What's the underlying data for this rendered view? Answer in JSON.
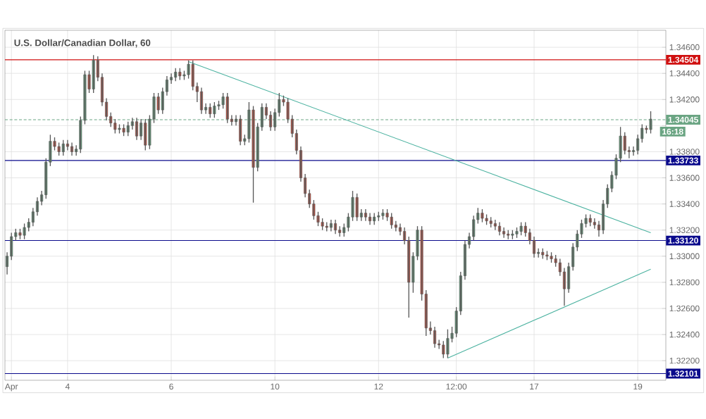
{
  "chart_data": {
    "type": "candlestick",
    "title": "U.S. Dollar/Canadian Dollar, 60",
    "categories": [
      null,
      "Apr",
      null,
      null,
      null,
      null,
      null,
      null,
      null,
      null,
      null,
      null,
      null,
      null,
      "4",
      null,
      null,
      null,
      null,
      null,
      null,
      null,
      null,
      null,
      null,
      null,
      null,
      null,
      null,
      null,
      null,
      null,
      null,
      null,
      null,
      null,
      null,
      null,
      "6",
      null,
      null,
      null,
      null,
      null,
      null,
      null,
      null,
      null,
      null,
      null,
      null,
      null,
      null,
      null,
      null,
      null,
      null,
      null,
      null,
      null,
      null,
      null,
      "10",
      null,
      null,
      null,
      null,
      null,
      null,
      null,
      null,
      null,
      null,
      null,
      null,
      null,
      null,
      null,
      null,
      null,
      null,
      null,
      null,
      null,
      null,
      null,
      "12",
      null,
      null,
      null,
      null,
      null,
      null,
      null,
      null,
      null,
      null,
      null,
      null,
      null,
      null,
      null,
      null,
      null,
      "12:00",
      null,
      null,
      null,
      null,
      null,
      null,
      null,
      null,
      null,
      null,
      null,
      null,
      null,
      null,
      null,
      null,
      null,
      "17",
      null,
      null,
      null,
      null,
      null,
      null,
      null,
      null,
      null,
      null,
      null,
      null,
      null,
      null,
      null,
      null,
      null,
      null,
      null,
      null,
      null,
      null,
      null,
      "19",
      null,
      null,
      null
    ],
    "ohlc": [
      [
        1.3292,
        1.3303,
        1.3286,
        1.33
      ],
      [
        1.33,
        1.3318,
        1.3297,
        1.3315
      ],
      [
        1.3315,
        1.3321,
        1.3312,
        1.3318
      ],
      [
        1.3318,
        1.3321,
        1.3313,
        1.3316
      ],
      [
        1.3316,
        1.3325,
        1.3313,
        1.3322
      ],
      [
        1.3322,
        1.3329,
        1.3319,
        1.3326
      ],
      [
        1.3326,
        1.3337,
        1.3323,
        1.3334
      ],
      [
        1.3334,
        1.3345,
        1.3331,
        1.3342
      ],
      [
        1.3342,
        1.335,
        1.3339,
        1.3347
      ],
      [
        1.3347,
        1.3375,
        1.3344,
        1.3372
      ],
      [
        1.3372,
        1.3393,
        1.3369,
        1.3388
      ],
      [
        1.3388,
        1.3391,
        1.3381,
        1.3384
      ],
      [
        1.3384,
        1.3387,
        1.3377,
        1.338
      ],
      [
        1.338,
        1.3389,
        1.3377,
        1.3386
      ],
      [
        1.3386,
        1.3389,
        1.3381,
        1.3384
      ],
      [
        1.3384,
        1.3387,
        1.3377,
        1.338
      ],
      [
        1.338,
        1.3385,
        1.3377,
        1.3382
      ],
      [
        1.3382,
        1.3407,
        1.3379,
        1.3404
      ],
      [
        1.3404,
        1.3442,
        1.3401,
        1.3439
      ],
      [
        1.3439,
        1.3442,
        1.3425,
        1.3428
      ],
      [
        1.3428,
        1.3454,
        1.3425,
        1.345
      ],
      [
        1.345,
        1.3453,
        1.3434,
        1.3437
      ],
      [
        1.3437,
        1.344,
        1.3415,
        1.3418
      ],
      [
        1.3418,
        1.3421,
        1.3404,
        1.3407
      ],
      [
        1.3407,
        1.341,
        1.3399,
        1.3402
      ],
      [
        1.3402,
        1.3405,
        1.3394,
        1.3397
      ],
      [
        1.3397,
        1.3401,
        1.3394,
        1.3398
      ],
      [
        1.3398,
        1.3401,
        1.3392,
        1.3395
      ],
      [
        1.3395,
        1.3403,
        1.3392,
        1.34
      ],
      [
        1.34,
        1.3406,
        1.3397,
        1.3403
      ],
      [
        1.3403,
        1.3406,
        1.3389,
        1.3392
      ],
      [
        1.3392,
        1.3405,
        1.3389,
        1.3402
      ],
      [
        1.3402,
        1.3405,
        1.3381,
        1.3385
      ],
      [
        1.3385,
        1.3408,
        1.3382,
        1.3405
      ],
      [
        1.3405,
        1.3425,
        1.3402,
        1.3422
      ],
      [
        1.3422,
        1.3425,
        1.3409,
        1.3412
      ],
      [
        1.3412,
        1.3429,
        1.3409,
        1.3426
      ],
      [
        1.3426,
        1.3438,
        1.3423,
        1.3435
      ],
      [
        1.3435,
        1.344,
        1.3432,
        1.3437
      ],
      [
        1.3437,
        1.3444,
        1.3434,
        1.3441
      ],
      [
        1.3441,
        1.3444,
        1.3435,
        1.3438
      ],
      [
        1.3438,
        1.3442,
        1.3435,
        1.3439
      ],
      [
        1.3439,
        1.345,
        1.3436,
        1.3447
      ],
      [
        1.3447,
        1.345,
        1.3427,
        1.343
      ],
      [
        1.343,
        1.3433,
        1.3418,
        1.3426
      ],
      [
        1.3426,
        1.3429,
        1.3409,
        1.3412
      ],
      [
        1.3412,
        1.3417,
        1.3409,
        1.3414
      ],
      [
        1.3414,
        1.3417,
        1.3406,
        1.3409
      ],
      [
        1.3409,
        1.3418,
        1.3406,
        1.3415
      ],
      [
        1.3415,
        1.3419,
        1.3412,
        1.3416
      ],
      [
        1.3416,
        1.3425,
        1.3413,
        1.3422
      ],
      [
        1.3422,
        1.3425,
        1.3402,
        1.3405
      ],
      [
        1.3405,
        1.3408,
        1.34,
        1.3403
      ],
      [
        1.3403,
        1.3408,
        1.34,
        1.3405
      ],
      [
        1.3405,
        1.3408,
        1.3385,
        1.3388
      ],
      [
        1.3388,
        1.3393,
        1.3385,
        1.339
      ],
      [
        1.339,
        1.3418,
        1.3387,
        1.3412
      ],
      [
        1.3412,
        1.3415,
        1.3341,
        1.3368
      ],
      [
        1.3368,
        1.3402,
        1.3365,
        1.3399
      ],
      [
        1.3399,
        1.3417,
        1.3396,
        1.3414
      ],
      [
        1.3414,
        1.3417,
        1.3405,
        1.3408
      ],
      [
        1.3408,
        1.3411,
        1.3396,
        1.3399
      ],
      [
        1.3399,
        1.3413,
        1.3396,
        1.341
      ],
      [
        1.341,
        1.3425,
        1.3407,
        1.342
      ],
      [
        1.342,
        1.3423,
        1.3415,
        1.3418
      ],
      [
        1.3418,
        1.3421,
        1.3402,
        1.3405
      ],
      [
        1.3405,
        1.3408,
        1.3391,
        1.3394
      ],
      [
        1.3394,
        1.3397,
        1.3378,
        1.3381
      ],
      [
        1.3381,
        1.3384,
        1.3357,
        1.336
      ],
      [
        1.336,
        1.3363,
        1.3345,
        1.3348
      ],
      [
        1.3348,
        1.3351,
        1.3337,
        1.334
      ],
      [
        1.334,
        1.3343,
        1.3328,
        1.3331
      ],
      [
        1.3331,
        1.3334,
        1.3323,
        1.3326
      ],
      [
        1.3326,
        1.3329,
        1.332,
        1.3323
      ],
      [
        1.3323,
        1.3326,
        1.3319,
        1.3322
      ],
      [
        1.3322,
        1.3328,
        1.3319,
        1.3325
      ],
      [
        1.3325,
        1.3328,
        1.3317,
        1.332
      ],
      [
        1.332,
        1.3323,
        1.3315,
        1.3318
      ],
      [
        1.3318,
        1.3325,
        1.3315,
        1.3322
      ],
      [
        1.3322,
        1.3333,
        1.3319,
        1.333
      ],
      [
        1.333,
        1.335,
        1.3327,
        1.3345
      ],
      [
        1.3345,
        1.3348,
        1.3327,
        1.333
      ],
      [
        1.333,
        1.3336,
        1.3327,
        1.3333
      ],
      [
        1.3333,
        1.3336,
        1.3327,
        1.333
      ],
      [
        1.333,
        1.3333,
        1.3324,
        1.3327
      ],
      [
        1.3327,
        1.3333,
        1.3324,
        1.333
      ],
      [
        1.333,
        1.3334,
        1.3327,
        1.3331
      ],
      [
        1.3331,
        1.3336,
        1.3328,
        1.3333
      ],
      [
        1.3333,
        1.3336,
        1.3327,
        1.333
      ],
      [
        1.333,
        1.3333,
        1.3321,
        1.3324
      ],
      [
        1.3324,
        1.3327,
        1.3319,
        1.3322
      ],
      [
        1.3322,
        1.3325,
        1.3316,
        1.3319
      ],
      [
        1.3319,
        1.3322,
        1.3309,
        1.3312
      ],
      [
        1.3312,
        1.3315,
        1.3253,
        1.328
      ],
      [
        1.328,
        1.3303,
        1.3272,
        1.33
      ],
      [
        1.33,
        1.3323,
        1.3297,
        1.332
      ],
      [
        1.332,
        1.3323,
        1.3266,
        1.3271
      ],
      [
        1.3271,
        1.3274,
        1.3239,
        1.3245
      ],
      [
        1.3245,
        1.325,
        1.324,
        1.3243
      ],
      [
        1.3243,
        1.3246,
        1.323,
        1.3233
      ],
      [
        1.3233,
        1.3236,
        1.3229,
        1.3232
      ],
      [
        1.3232,
        1.3235,
        1.3222,
        1.3225
      ],
      [
        1.3225,
        1.3244,
        1.3222,
        1.3237
      ],
      [
        1.3237,
        1.3246,
        1.3234,
        1.3241
      ],
      [
        1.3241,
        1.3261,
        1.3238,
        1.3258
      ],
      [
        1.3258,
        1.3288,
        1.3255,
        1.3285
      ],
      [
        1.3285,
        1.3312,
        1.3282,
        1.3309
      ],
      [
        1.3309,
        1.3318,
        1.3306,
        1.3315
      ],
      [
        1.3315,
        1.3331,
        1.3312,
        1.3328
      ],
      [
        1.3328,
        1.3337,
        1.3325,
        1.3333
      ],
      [
        1.3333,
        1.3336,
        1.3326,
        1.3329
      ],
      [
        1.3329,
        1.3332,
        1.3324,
        1.3327
      ],
      [
        1.3327,
        1.333,
        1.3322,
        1.3325
      ],
      [
        1.3325,
        1.3328,
        1.332,
        1.3323
      ],
      [
        1.3323,
        1.3326,
        1.3316,
        1.3319
      ],
      [
        1.3319,
        1.3322,
        1.3314,
        1.3317
      ],
      [
        1.3317,
        1.332,
        1.3313,
        1.3316
      ],
      [
        1.3316,
        1.332,
        1.3313,
        1.3317
      ],
      [
        1.3317,
        1.3322,
        1.3314,
        1.3319
      ],
      [
        1.3319,
        1.3326,
        1.3316,
        1.3323
      ],
      [
        1.3323,
        1.3326,
        1.3315,
        1.3318
      ],
      [
        1.3318,
        1.3321,
        1.3309,
        1.3312
      ],
      [
        1.3312,
        1.3315,
        1.3299,
        1.3302
      ],
      [
        1.3302,
        1.3306,
        1.3299,
        1.3303
      ],
      [
        1.3303,
        1.3306,
        1.3298,
        1.3301
      ],
      [
        1.3301,
        1.3304,
        1.3297,
        1.33
      ],
      [
        1.33,
        1.3303,
        1.3295,
        1.3298
      ],
      [
        1.3298,
        1.3301,
        1.3292,
        1.3295
      ],
      [
        1.3295,
        1.3298,
        1.3285,
        1.3288
      ],
      [
        1.3288,
        1.3291,
        1.3262,
        1.3275
      ],
      [
        1.3275,
        1.3295,
        1.3272,
        1.3292
      ],
      [
        1.3292,
        1.331,
        1.3289,
        1.3307
      ],
      [
        1.3307,
        1.332,
        1.3304,
        1.3317
      ],
      [
        1.3317,
        1.3328,
        1.3314,
        1.3325
      ],
      [
        1.3325,
        1.3332,
        1.3322,
        1.3329
      ],
      [
        1.3329,
        1.3332,
        1.3323,
        1.3326
      ],
      [
        1.3326,
        1.3329,
        1.3321,
        1.3324
      ],
      [
        1.3324,
        1.3327,
        1.3315,
        1.332
      ],
      [
        1.332,
        1.3343,
        1.3317,
        1.334
      ],
      [
        1.334,
        1.3355,
        1.3337,
        1.3352
      ],
      [
        1.3352,
        1.3365,
        1.3349,
        1.3362
      ],
      [
        1.3362,
        1.3378,
        1.3359,
        1.3375
      ],
      [
        1.3375,
        1.3399,
        1.3372,
        1.3392
      ],
      [
        1.3392,
        1.3395,
        1.3378,
        1.3381
      ],
      [
        1.3381,
        1.3384,
        1.3375,
        1.338
      ],
      [
        1.338,
        1.3384,
        1.3377,
        1.3381
      ],
      [
        1.3381,
        1.3393,
        1.3378,
        1.339
      ],
      [
        1.339,
        1.3401,
        1.3387,
        1.3398
      ],
      [
        1.3398,
        1.34,
        1.3394,
        1.3397
      ],
      [
        1.3397,
        1.3411,
        1.3394,
        1.3405
      ]
    ],
    "colors": [
      "#6ba583",
      "#6ba583",
      "#6ba583",
      "#d75442",
      "#6ba583",
      "#6ba583",
      "#6ba583",
      "#6ba583",
      "#6ba583",
      "#6ba583",
      "#6ba583",
      "#d75442",
      "#d75442",
      "#6ba583",
      "#d75442",
      "#d75442",
      "#6ba583",
      "#6ba583",
      "#6ba583",
      "#d75442",
      "#6ba583",
      "#d75442",
      "#d75442",
      "#d75442",
      "#d75442",
      "#d75442",
      "#6ba583",
      "#d75442",
      "#6ba583",
      "#6ba583",
      "#d75442",
      "#6ba583",
      "#d75442",
      "#6ba583",
      "#6ba583",
      "#d75442",
      "#6ba583",
      "#6ba583",
      "#6ba583",
      "#6ba583",
      "#d75442",
      "#6ba583",
      "#6ba583",
      "#d75442",
      "#d75442",
      "#d75442",
      "#6ba583",
      "#d75442",
      "#6ba583",
      "#6ba583",
      "#6ba583",
      "#d75442",
      "#d75442",
      "#6ba583",
      "#d75442",
      "#6ba583",
      "#6ba583",
      "#d75442",
      "#6ba583",
      "#6ba583",
      "#d75442",
      "#d75442",
      "#6ba583",
      "#6ba583",
      "#d75442",
      "#d75442",
      "#d75442",
      "#d75442",
      "#d75442",
      "#d75442",
      "#d75442",
      "#d75442",
      "#d75442",
      "#d75442",
      "#d75442",
      "#6ba583",
      "#d75442",
      "#d75442",
      "#6ba583",
      "#6ba583",
      "#6ba583",
      "#d75442",
      "#6ba583",
      "#d75442",
      "#d75442",
      "#6ba583",
      "#6ba583",
      "#6ba583",
      "#d75442",
      "#d75442",
      "#d75442",
      "#d75442",
      "#d75442",
      "#d75442",
      "#6ba583",
      "#6ba583",
      "#d75442",
      "#d75442",
      "#d75442",
      "#d75442",
      "#d75442",
      "#d75442",
      "#6ba583",
      "#6ba583",
      "#6ba583",
      "#6ba583",
      "#6ba583",
      "#6ba583",
      "#6ba583",
      "#6ba583",
      "#d75442",
      "#d75442",
      "#d75442",
      "#d75442",
      "#d75442",
      "#d75442",
      "#d75442",
      "#6ba583",
      "#6ba583",
      "#6ba583",
      "#d75442",
      "#d75442",
      "#d75442",
      "#6ba583",
      "#d75442",
      "#d75442",
      "#d75442",
      "#d75442",
      "#d75442",
      "#d75442",
      "#6ba583",
      "#6ba583",
      "#6ba583",
      "#6ba583",
      "#6ba583",
      "#d75442",
      "#d75442",
      "#d75442",
      "#6ba583",
      "#6ba583",
      "#6ba583",
      "#6ba583",
      "#6ba583",
      "#d75442",
      "#d75442",
      "#6ba583",
      "#6ba583",
      "#6ba583",
      "#d75442",
      "#6ba583"
    ],
    "series": [
      {
        "type": "line",
        "color": "#4bb2a0",
        "values": [
          null,
          null,
          null,
          null,
          null,
          null,
          null,
          null,
          null,
          null,
          null,
          null,
          null,
          null,
          null,
          null,
          null,
          null,
          null,
          null,
          null,
          null,
          null,
          null,
          null,
          null,
          null,
          null,
          null,
          null,
          null,
          null,
          null,
          null,
          null,
          null,
          null,
          null,
          null,
          null,
          null,
          null,
          1.3449,
          null,
          null,
          null,
          null,
          null,
          null,
          null,
          null,
          null,
          null,
          null,
          null,
          null,
          null,
          null,
          null,
          null,
          null,
          null,
          null,
          null,
          null,
          null,
          null,
          null,
          null,
          null,
          null,
          null,
          null,
          null,
          null,
          null,
          null,
          null,
          null,
          null,
          null,
          null,
          null,
          null,
          null,
          null,
          null,
          null,
          null,
          null,
          null,
          null,
          null,
          null,
          null,
          null,
          null,
          null,
          null,
          null,
          null,
          null,
          null,
          null,
          null,
          null,
          null,
          null,
          null,
          null,
          null,
          null,
          null,
          null,
          null,
          null,
          null,
          null,
          null,
          null,
          null,
          null,
          null,
          null,
          null,
          null,
          null,
          null,
          null,
          null,
          null,
          null,
          null,
          null,
          null,
          null,
          null,
          null,
          null,
          null,
          null,
          null,
          null,
          null,
          null,
          null,
          null,
          null,
          null,
          1.3318
        ]
      },
      {
        "type": "line",
        "color": "#4bb2a0",
        "values": [
          null,
          null,
          null,
          null,
          null,
          null,
          null,
          null,
          null,
          null,
          null,
          null,
          null,
          null,
          null,
          null,
          null,
          null,
          null,
          null,
          null,
          null,
          null,
          null,
          null,
          null,
          null,
          null,
          null,
          null,
          null,
          null,
          null,
          null,
          null,
          null,
          null,
          null,
          null,
          null,
          null,
          null,
          null,
          null,
          null,
          null,
          null,
          null,
          null,
          null,
          null,
          null,
          null,
          null,
          null,
          null,
          null,
          null,
          null,
          null,
          null,
          null,
          null,
          null,
          null,
          null,
          null,
          null,
          null,
          null,
          null,
          null,
          null,
          null,
          null,
          null,
          null,
          null,
          null,
          null,
          null,
          null,
          null,
          null,
          null,
          null,
          null,
          null,
          null,
          null,
          null,
          null,
          null,
          null,
          null,
          null,
          null,
          null,
          null,
          null,
          null,
          null,
          1.3222,
          null,
          null,
          null,
          null,
          null,
          null,
          null,
          null,
          null,
          null,
          null,
          null,
          null,
          null,
          null,
          null,
          null,
          null,
          null,
          null,
          null,
          null,
          null,
          null,
          null,
          null,
          null,
          null,
          null,
          null,
          null,
          null,
          null,
          null,
          null,
          null,
          null,
          null,
          null,
          null,
          null,
          null,
          null,
          null,
          null,
          null,
          1.329
        ]
      }
    ],
    "ylim": [
      1.3205,
      1.3473
    ],
    "yticks": [
      {
        "value": 1.322,
        "label": "1.32200"
      },
      {
        "value": 1.324,
        "label": "1.32400"
      },
      {
        "value": 1.326,
        "label": "1.32600"
      },
      {
        "value": 1.328,
        "label": "1.32800"
      },
      {
        "value": 1.33,
        "label": "1.33000"
      },
      {
        "value": 1.332,
        "label": "1.33200"
      },
      {
        "value": 1.334,
        "label": "1.33400"
      },
      {
        "value": 1.336,
        "label": "1.33600"
      },
      {
        "value": 1.338,
        "label": "1.33800"
      },
      {
        "value": 1.34,
        "label": null
      },
      {
        "value": 1.342,
        "label": "1.34200"
      },
      {
        "value": 1.344,
        "label": "1.34400"
      },
      {
        "value": 1.346,
        "label": "1.34600"
      }
    ],
    "ref_lines": [
      {
        "axis": "y",
        "value": 1.34504,
        "label": "1.34504",
        "color": "#d01010",
        "line_style": "solid"
      },
      {
        "axis": "y",
        "value": 1.33733,
        "label": "1.33733",
        "color": "#0a0a8c",
        "line_style": "solid"
      },
      {
        "axis": "y",
        "value": 1.3312,
        "label": "1.33120",
        "color": "#0a0a8c",
        "line_style": "solid"
      },
      {
        "axis": "y",
        "value": 1.32101,
        "label": "1.32101",
        "color": "#0a0a8c",
        "line_style": "solid"
      },
      {
        "axis": "y",
        "value": 1.34045,
        "label": "1.34045",
        "color": "#6ba583",
        "line_style": "dotted"
      }
    ],
    "annotations": [
      "16:18"
    ],
    "grid": true
  }
}
